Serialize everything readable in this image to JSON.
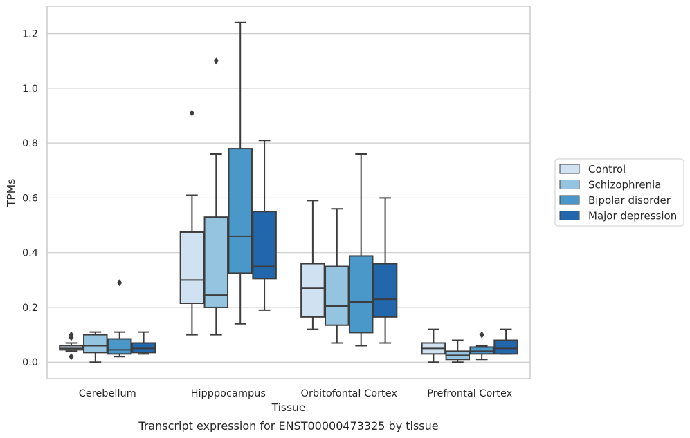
{
  "chart_data": {
    "type": "box",
    "caption": "Transcript expression for ENST00000473325 by tissue",
    "xlabel": "Tissue",
    "ylabel": "TPMs",
    "ylim": [
      -0.06,
      1.3
    ],
    "yticks": [
      0.0,
      0.2,
      0.4,
      0.6,
      0.8,
      1.0,
      1.2
    ],
    "ytick_labels": [
      "0.0",
      "0.2",
      "0.4",
      "0.6",
      "0.8",
      "1.0",
      "1.2"
    ],
    "grid": "horizontal",
    "legend_placement": "right",
    "categories": [
      "Cerebellum",
      "Hipppocampus",
      "Orbitofontal Cortex",
      "Prefrontal Cortex"
    ],
    "series": [
      {
        "name": "Control",
        "color": "#d0e1f2",
        "boxes": [
          {
            "whislo": 0.04,
            "q1": 0.045,
            "med": 0.05,
            "q3": 0.06,
            "whishi": 0.07,
            "fliers": [
              0.09,
              0.1,
              0.02
            ]
          },
          {
            "whislo": 0.1,
            "q1": 0.215,
            "med": 0.3,
            "q3": 0.475,
            "whishi": 0.61,
            "fliers": [
              0.91
            ]
          },
          {
            "whislo": 0.12,
            "q1": 0.165,
            "med": 0.27,
            "q3": 0.36,
            "whishi": 0.59,
            "fliers": []
          },
          {
            "whislo": 0.0,
            "q1": 0.03,
            "med": 0.05,
            "q3": 0.07,
            "whishi": 0.12,
            "fliers": []
          }
        ]
      },
      {
        "name": "Schizophrenia",
        "color": "#94c4df",
        "boxes": [
          {
            "whislo": 0.0,
            "q1": 0.035,
            "med": 0.06,
            "q3": 0.1,
            "whishi": 0.11,
            "fliers": []
          },
          {
            "whislo": 0.1,
            "q1": 0.2,
            "med": 0.245,
            "q3": 0.53,
            "whishi": 0.76,
            "fliers": [
              1.1
            ]
          },
          {
            "whislo": 0.07,
            "q1": 0.135,
            "med": 0.205,
            "q3": 0.35,
            "whishi": 0.56,
            "fliers": []
          },
          {
            "whislo": 0.0,
            "q1": 0.01,
            "med": 0.025,
            "q3": 0.04,
            "whishi": 0.08,
            "fliers": []
          }
        ]
      },
      {
        "name": "Bipolar disorder",
        "color": "#4a98c9",
        "boxes": [
          {
            "whislo": 0.02,
            "q1": 0.03,
            "med": 0.045,
            "q3": 0.085,
            "whishi": 0.11,
            "fliers": [
              0.29
            ]
          },
          {
            "whislo": 0.14,
            "q1": 0.325,
            "med": 0.46,
            "q3": 0.78,
            "whishi": 1.24,
            "fliers": []
          },
          {
            "whislo": 0.06,
            "q1": 0.108,
            "med": 0.22,
            "q3": 0.388,
            "whishi": 0.76,
            "fliers": []
          },
          {
            "whislo": 0.01,
            "q1": 0.03,
            "med": 0.04,
            "q3": 0.055,
            "whishi": 0.06,
            "fliers": [
              0.1,
              0.1
            ]
          }
        ]
      },
      {
        "name": "Major depression",
        "color": "#2266ac",
        "boxes": [
          {
            "whislo": 0.03,
            "q1": 0.035,
            "med": 0.05,
            "q3": 0.07,
            "whishi": 0.11,
            "fliers": []
          },
          {
            "whislo": 0.19,
            "q1": 0.305,
            "med": 0.35,
            "q3": 0.55,
            "whishi": 0.81,
            "fliers": []
          },
          {
            "whislo": 0.07,
            "q1": 0.165,
            "med": 0.23,
            "q3": 0.36,
            "whishi": 0.6,
            "fliers": []
          },
          {
            "whislo": 0.03,
            "q1": 0.03,
            "med": 0.05,
            "q3": 0.08,
            "whishi": 0.12,
            "fliers": []
          }
        ]
      }
    ]
  }
}
